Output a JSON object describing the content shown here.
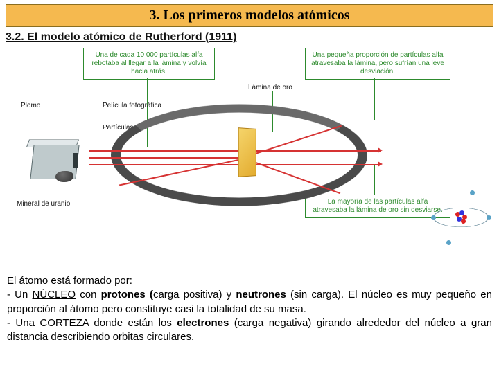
{
  "header": {
    "title": "3. Los primeros modelos atómicos",
    "subtitle": "3.2. El modelo atómico de Rutherford (1911)"
  },
  "boxes": {
    "rebound": "Una de cada 10 000 partículas alfa rebotaba al llegar a la lámina y volvía hacia atrás.",
    "deflect": "Una pequeña proporción de partículas alfa atravesaba la lámina, pero sufrían una leve desviación.",
    "pass": "La mayoría de las partículas alfa atravesaba la lámina de oro sin desviarse."
  },
  "labels": {
    "plomo": "Plomo",
    "pelicula": "Película fotográfica",
    "particulas": "Partículas α",
    "lamina": "Lámina de oro",
    "uranio": "Mineral de uranio"
  },
  "body": {
    "intro": "El átomo está formado por:",
    "nucleo_pre": "  - Un ",
    "nucleo_word": "NÚCLEO",
    "nucleo_mid1": " con ",
    "protones": "protones (",
    "protones_tail": "carga positiva)  y ",
    "neutrones": "neutrones",
    "neutrones_tail": " (sin carga). El núcleo es muy pequeño en proporción al átomo pero constituye casi la totalidad de su masa.",
    "corteza_pre": "   - Una ",
    "corteza_word": "CORTEZA",
    "corteza_mid": " donde están los ",
    "electrones": "electrones",
    "electrones_tail": " (carga negativa) girando alrededor del núcleo a gran distancia describiendo orbitas circulares."
  },
  "colors": {
    "title_bg": "#f5b94f",
    "green": "#2d8a2d",
    "ray": "#d63333",
    "ring": "#4a4a4a"
  }
}
